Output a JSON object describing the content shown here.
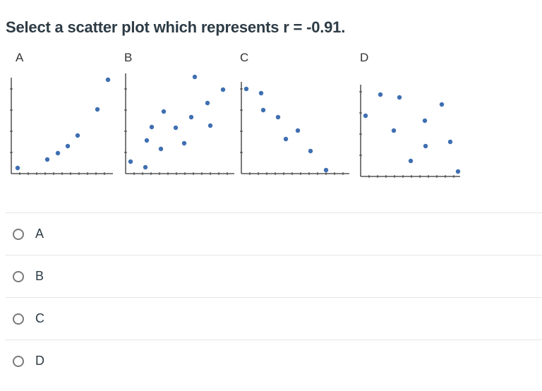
{
  "question": {
    "text": "Select a scatter plot which represents r = -0.91."
  },
  "plots": [
    {
      "label": "A"
    },
    {
      "label": "B"
    },
    {
      "label": "C"
    },
    {
      "label": "D"
    }
  ],
  "answers": [
    {
      "label": "A"
    },
    {
      "label": "B"
    },
    {
      "label": "C"
    },
    {
      "label": "D"
    }
  ],
  "colors": {
    "point": "#3f6fb1",
    "axis": "#333333",
    "text": "#2d3b45"
  }
}
